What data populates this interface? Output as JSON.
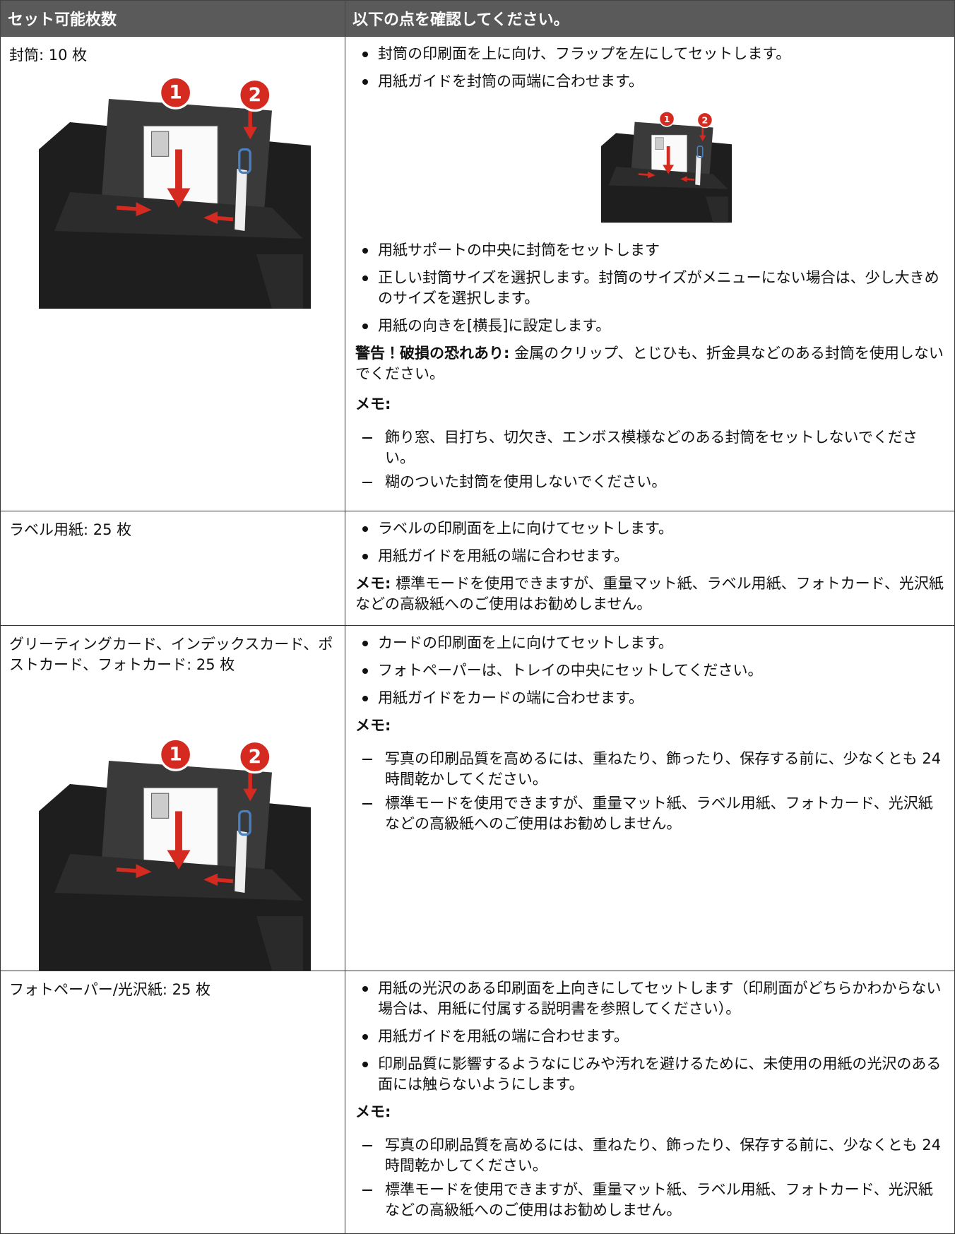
{
  "header": {
    "col1": "セット可能枚数",
    "col2": "以下の点を確認してください。"
  },
  "rows": [
    {
      "label": "封筒: 10 枚",
      "figure_callouts": [
        "1",
        "2"
      ],
      "bullets_top": [
        "封筒の印刷面を上に向け、フラップを左にしてセットします。",
        "用紙ガイドを封筒の両端に合わせます。"
      ],
      "figure2_callouts": [
        "1",
        "2"
      ],
      "bullets": [
        "用紙サポートの中央に封筒をセットします",
        "正しい封筒サイズを選択します。封筒のサイズがメニューにない場合は、少し大きめのサイズを選択します。",
        "用紙の向きを[横長]に設定します。"
      ],
      "warning": {
        "label": "警告！破損の恐れあり:",
        "text": "金属のクリップ、とじひも、折金具などのある封筒を使用しないでください。"
      },
      "note": {
        "label": "メモ:",
        "items": [
          "飾り窓、目打ち、切欠き、エンボス模様などのある封筒をセットしないでください。",
          "糊のついた封筒を使用しないでください。"
        ]
      }
    },
    {
      "label": "ラベル用紙: 25 枚",
      "bullets": [
        "ラベルの印刷面を上に向けてセットします。",
        "用紙ガイドを用紙の端に合わせます。"
      ],
      "note": {
        "label": "メモ:",
        "text": "標準モードを使用できますが、重量マット紙、ラベル用紙、フォトカード、光沢紙などの高級紙へのご使用はお勧めしません。"
      }
    },
    {
      "label": "グリーティングカード、インデックスカード、ポストカード、フォトカード: 25 枚",
      "figure_callouts": [
        "1",
        "2"
      ],
      "bullets": [
        "カードの印刷面を上に向けてセットします。",
        "フォトペーパーは、トレイの中央にセットしてください。",
        "用紙ガイドをカードの端に合わせます。"
      ],
      "note": {
        "label": "メモ:",
        "items": [
          "写真の印刷品質を高めるには、重ねたり、飾ったり、保存する前に、少なくとも 24 時間乾かしてください。",
          "標準モードを使用できますが、重量マット紙、ラベル用紙、フォトカード、光沢紙などの高級紙へのご使用はお勧めしません。"
        ]
      }
    },
    {
      "label": "フォトペーパー/光沢紙: 25 枚",
      "bullets": [
        "用紙の光沢のある印刷面を上向きにしてセットします（印刷面がどちらかわからない場合は、用紙に付属する説明書を参照してください）。",
        "用紙ガイドを用紙の端に合わせます。",
        "印刷品質に影響するようなにじみや汚れを避けるために、未使用の用紙の光沢のある面には触らないようにします。"
      ],
      "note": {
        "label": "メモ:",
        "items": [
          "写真の印刷品質を高めるには、重ねたり、飾ったり、保存する前に、少なくとも 24 時間乾かしてください。",
          "標準モードを使用できますが、重量マット紙、ラベル用紙、フォトカード、光沢紙などの高級紙へのご使用はお勧めしません。"
        ]
      }
    }
  ]
}
